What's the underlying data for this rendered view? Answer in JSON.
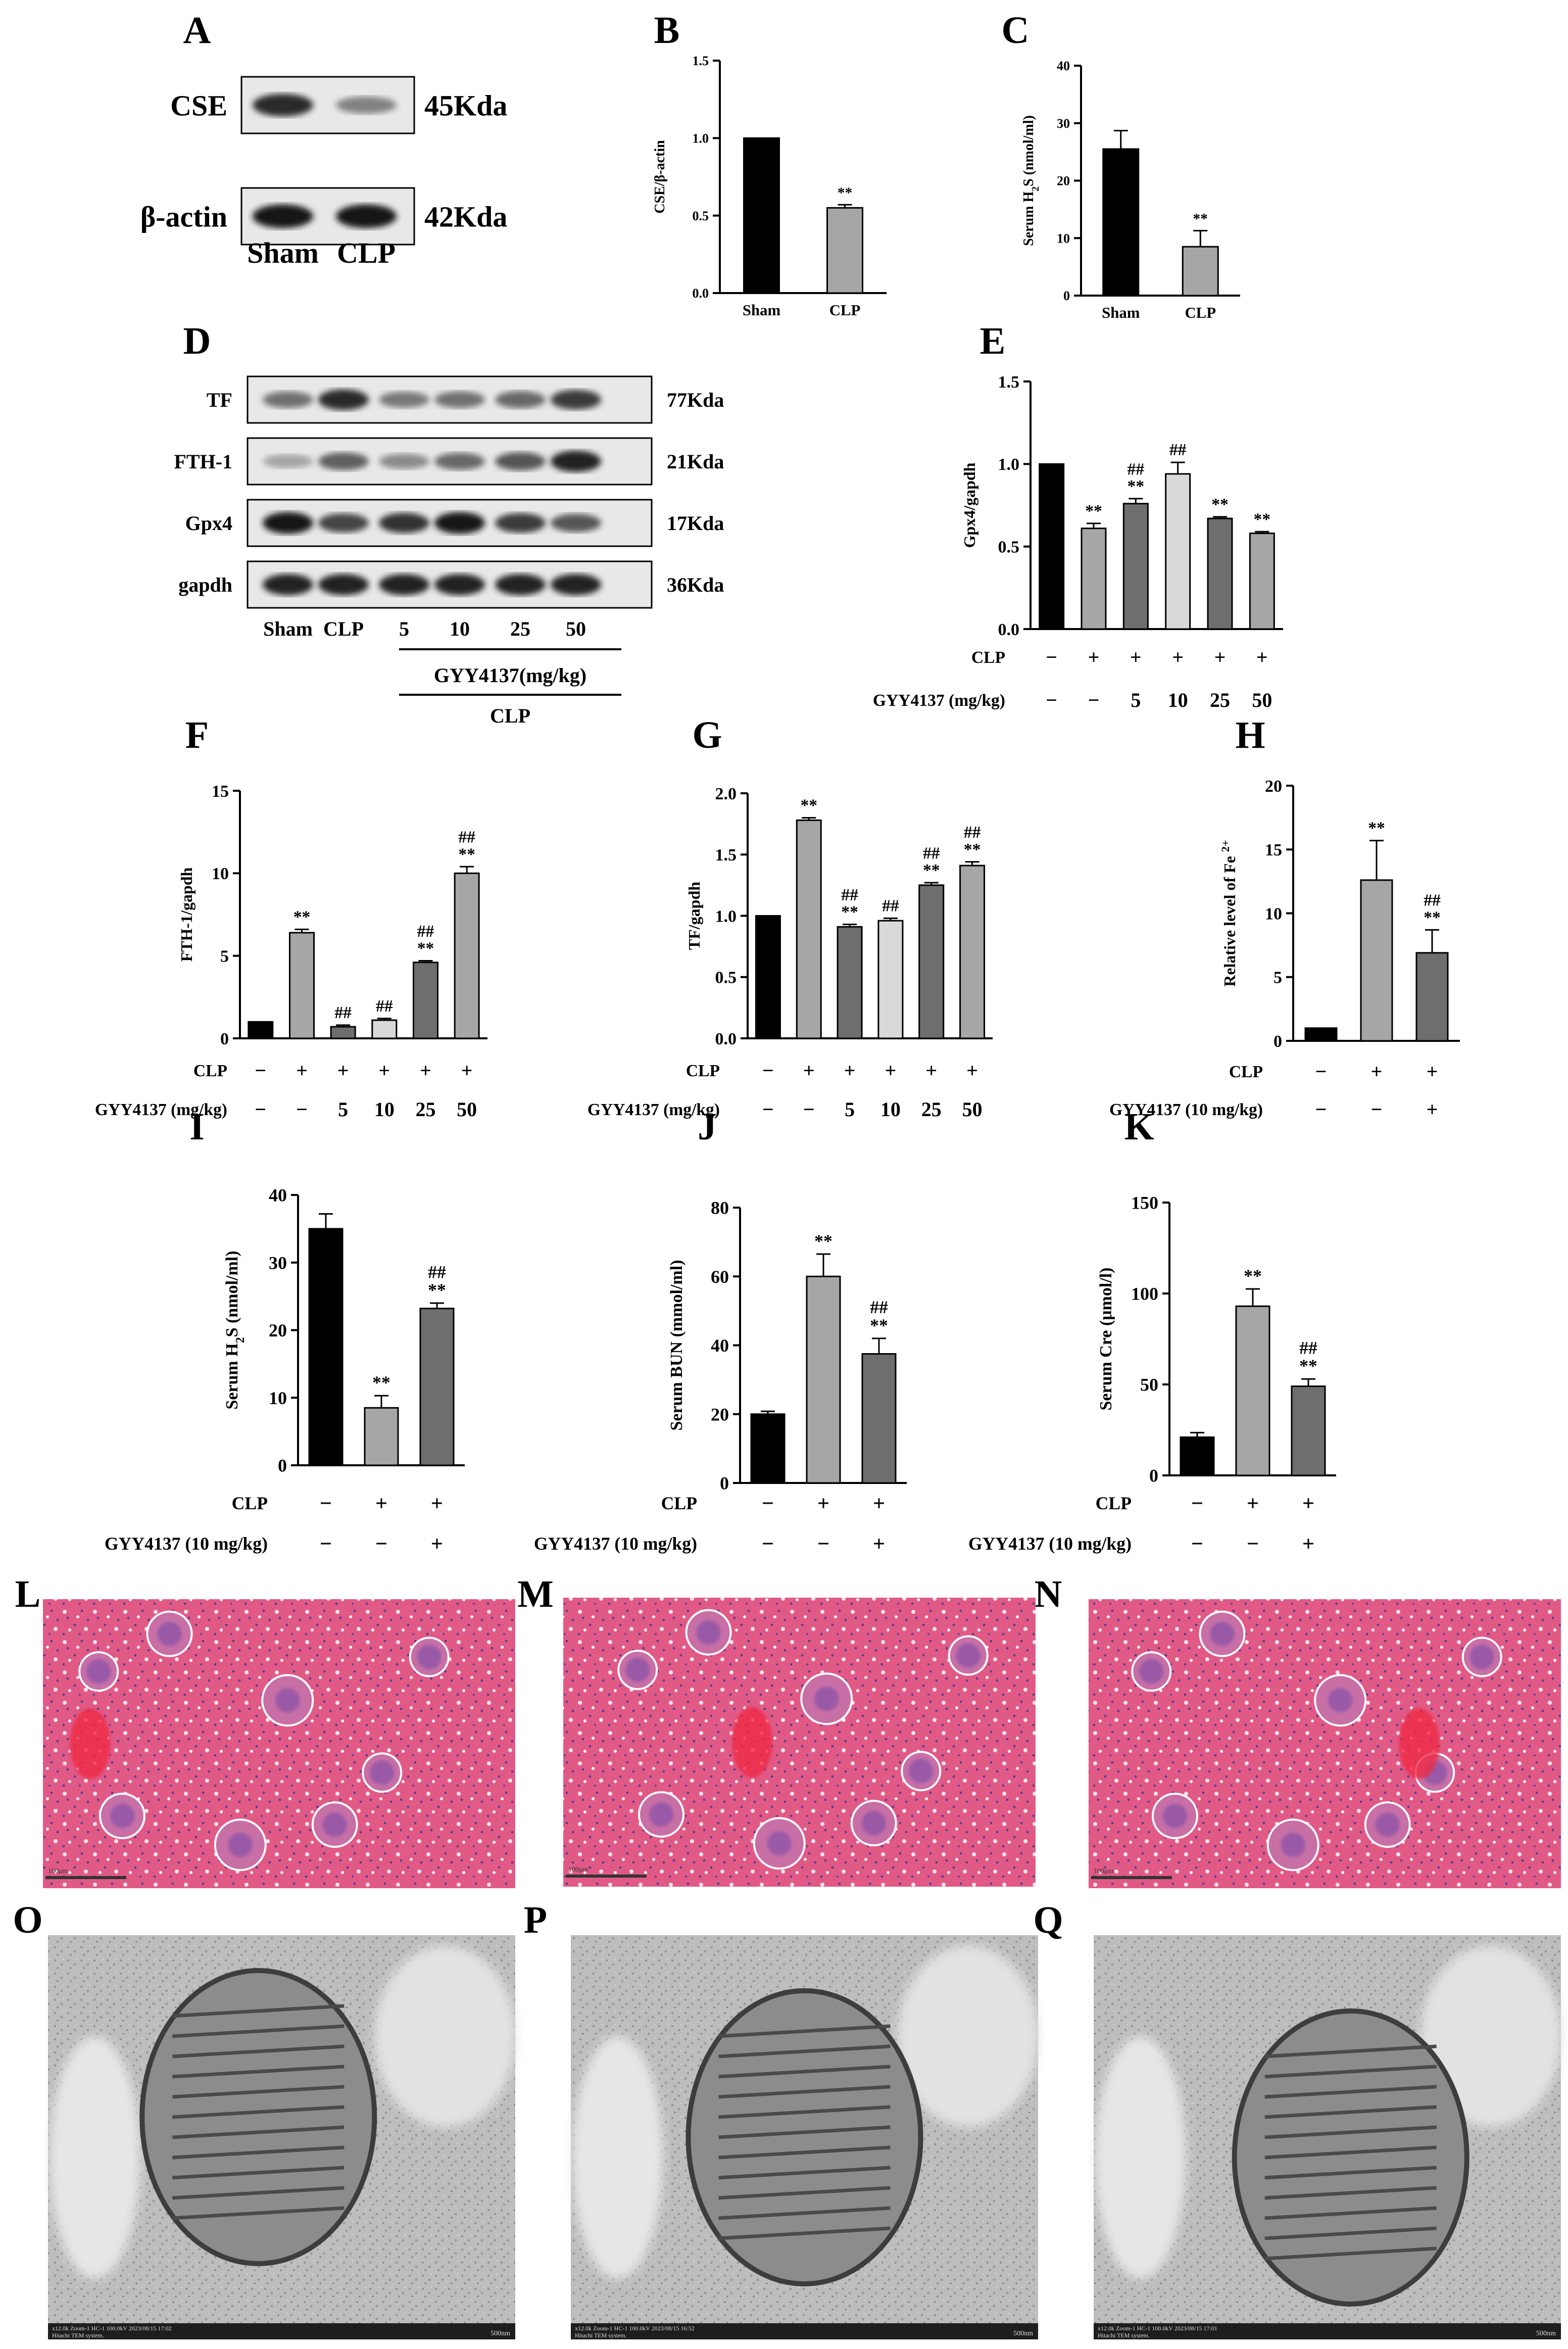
{
  "figure": {
    "panel_letters": [
      "A",
      "B",
      "C",
      "D",
      "E",
      "F",
      "G",
      "H",
      "I",
      "J",
      "K",
      "L",
      "M",
      "N",
      "O",
      "P",
      "Q"
    ]
  },
  "panelA": {
    "blots": [
      {
        "label": "CSE",
        "kda": "45Kda",
        "bands": [
          0.85,
          0.35
        ]
      },
      {
        "label": "β-actin",
        "kda": "42Kda",
        "bands": [
          0.95,
          0.95
        ]
      }
    ],
    "lanes": [
      "Sham",
      "CLP"
    ]
  },
  "panelD": {
    "blots": [
      {
        "label": "TF",
        "kda": "77Kda",
        "bands": [
          0.45,
          0.85,
          0.4,
          0.45,
          0.5,
          0.75
        ]
      },
      {
        "label": "FTH-1",
        "kda": "21Kda",
        "bands": [
          0.15,
          0.55,
          0.3,
          0.5,
          0.6,
          0.9
        ]
      },
      {
        "label": "Gpx4",
        "kda": "17Kda",
        "bands": [
          0.95,
          0.7,
          0.8,
          0.95,
          0.75,
          0.6
        ]
      },
      {
        "label": "gapdh",
        "kda": "36Kda",
        "bands": [
          0.9,
          0.9,
          0.9,
          0.9,
          0.9,
          0.9
        ]
      }
    ],
    "lanes": [
      "Sham",
      "CLP",
      "5",
      "10",
      "25",
      "50"
    ],
    "bracket_label": "GYY4137(mg/kg)",
    "bracket_label2": "CLP"
  },
  "rows": {
    "clp": "CLP",
    "gyy_dose": "GYY4137 (mg/kg)",
    "gyy_10": "GYY4137 (10 mg/kg)",
    "plus": "+",
    "minus": "−"
  },
  "colors": {
    "black": "#000000",
    "gray": "#a6a6a6",
    "dark_gray": "#6e6e6e",
    "light_gray": "#d9d9d9",
    "he_stain": "#e0527f",
    "tem": "#b8b8b8"
  },
  "micrographs": {
    "he_scale_text": "100μm",
    "tem_footer": [
      "x12.0k Zoom-1 HC-1 100.0kV 2023/08/15 17:02",
      "x12.0k Zoom-1 HC-1 100.0kV 2023/08/15 16:52",
      "x12.0k Zoom-1 HC-1 100.0kV 2023/08/15 17:01"
    ],
    "tem_system": "Hitachi TEM system.",
    "tem_scale": "500nm"
  },
  "chart_data": [
    {
      "panel": "B",
      "type": "bar",
      "categories": [
        "Sham",
        "CLP"
      ],
      "values": [
        1.0,
        0.55
      ],
      "errors": [
        0,
        0.02
      ],
      "ylabel": "CSE/β-actin",
      "ylim": [
        0,
        1.5
      ],
      "yticks": [
        "0.0",
        "0.5",
        "1.0",
        "1.5"
      ],
      "sig": [
        "",
        "**"
      ]
    },
    {
      "panel": "C",
      "type": "bar",
      "categories": [
        "Sham",
        "CLP"
      ],
      "values": [
        25.5,
        8.5
      ],
      "errors": [
        3.2,
        2.8
      ],
      "ylabel_main": "Serum H",
      "ylabel_sub": "2",
      "ylabel_end": "S (nmol/ml)",
      "ylim": [
        0,
        40
      ],
      "yticks": [
        "0",
        "10",
        "20",
        "30",
        "40"
      ],
      "sig": [
        "",
        "**"
      ]
    },
    {
      "panel": "E",
      "type": "bar",
      "values": [
        1.0,
        0.61,
        0.76,
        0.94,
        0.67,
        0.58
      ],
      "errors": [
        0,
        0.03,
        0.03,
        0.07,
        0.01,
        0.01
      ],
      "ylabel": "Gpx4/gapdh",
      "ylim": [
        0,
        1.5
      ],
      "yticks": [
        "0.0",
        "0.5",
        "1.0",
        "1.5"
      ],
      "sig": [
        "",
        "**",
        "##\n**",
        "##",
        "**",
        "**"
      ],
      "clp": [
        "−",
        "+",
        "+",
        "+",
        "+",
        "+"
      ],
      "gyy": [
        "−",
        "−",
        "5",
        "10",
        "25",
        "50"
      ]
    },
    {
      "panel": "F",
      "type": "bar",
      "values": [
        1.0,
        6.4,
        0.7,
        1.1,
        4.6,
        10.0
      ],
      "errors": [
        0,
        0.2,
        0.1,
        0.1,
        0.1,
        0.4
      ],
      "ylabel": "FTH-1/gapdh",
      "ylim": [
        0,
        15
      ],
      "yticks": [
        "0",
        "5",
        "10",
        "15"
      ],
      "sig": [
        "",
        "**",
        "##",
        "##",
        "##\n**",
        "##\n**"
      ],
      "clp": [
        "−",
        "+",
        "+",
        "+",
        "+",
        "+"
      ],
      "gyy": [
        "−",
        "−",
        "5",
        "10",
        "25",
        "50"
      ]
    },
    {
      "panel": "G",
      "type": "bar",
      "values": [
        1.0,
        1.78,
        0.91,
        0.96,
        1.25,
        1.41
      ],
      "errors": [
        0,
        0.02,
        0.02,
        0.02,
        0.02,
        0.03
      ],
      "ylabel": "TF/gapdh",
      "ylim": [
        0,
        2.0
      ],
      "yticks": [
        "0.0",
        "0.5",
        "1.0",
        "1.5",
        "2.0"
      ],
      "sig": [
        "",
        "**",
        "##\n**",
        "##",
        "##\n**",
        "##\n**"
      ],
      "clp": [
        "−",
        "+",
        "+",
        "+",
        "+",
        "+"
      ],
      "gyy": [
        "−",
        "−",
        "5",
        "10",
        "25",
        "50"
      ]
    },
    {
      "panel": "H",
      "type": "bar",
      "values": [
        1.0,
        12.6,
        6.9
      ],
      "errors": [
        0,
        3.1,
        1.8
      ],
      "ylabel_main": "Relative level of Fe ",
      "ylabel_sup": "2+",
      "ylim": [
        0,
        20
      ],
      "yticks": [
        "0",
        "5",
        "10",
        "15",
        "20"
      ],
      "sig": [
        "",
        "**",
        "##\n**"
      ],
      "clp": [
        "−",
        "+",
        "+"
      ],
      "gyy": [
        "−",
        "−",
        "+"
      ]
    },
    {
      "panel": "I",
      "type": "bar",
      "values": [
        35.0,
        8.5,
        23.2
      ],
      "errors": [
        2.2,
        1.8,
        0.8
      ],
      "ylabel_main": "Serum H",
      "ylabel_sub": "2",
      "ylabel_end": "S (nmol/ml)",
      "ylim": [
        0,
        40
      ],
      "yticks": [
        "0",
        "10",
        "20",
        "30",
        "40"
      ],
      "sig": [
        "",
        "**",
        "##\n**"
      ],
      "clp": [
        "−",
        "+",
        "+"
      ],
      "gyy": [
        "−",
        "−",
        "+"
      ]
    },
    {
      "panel": "J",
      "type": "bar",
      "values": [
        20.0,
        60.0,
        37.5
      ],
      "errors": [
        0.8,
        6.5,
        4.5
      ],
      "ylabel": "Serum BUN (mmol/ml)",
      "ylim": [
        0,
        80
      ],
      "yticks": [
        "0",
        "20",
        "40",
        "60",
        "80"
      ],
      "sig": [
        "",
        "**",
        "##\n**"
      ],
      "clp": [
        "−",
        "+",
        "+"
      ],
      "gyy": [
        "−",
        "−",
        "+"
      ]
    },
    {
      "panel": "K",
      "type": "bar",
      "values": [
        21.0,
        93.0,
        49.0
      ],
      "errors": [
        2.5,
        9.5,
        4.0
      ],
      "ylabel": "Serum Cre (μmol/l)",
      "ylim": [
        0,
        150
      ],
      "yticks": [
        "0",
        "50",
        "100",
        "150"
      ],
      "sig": [
        "",
        "**",
        "##\n**"
      ],
      "clp": [
        "−",
        "+",
        "+"
      ],
      "gyy": [
        "−",
        "−",
        "+"
      ]
    }
  ]
}
